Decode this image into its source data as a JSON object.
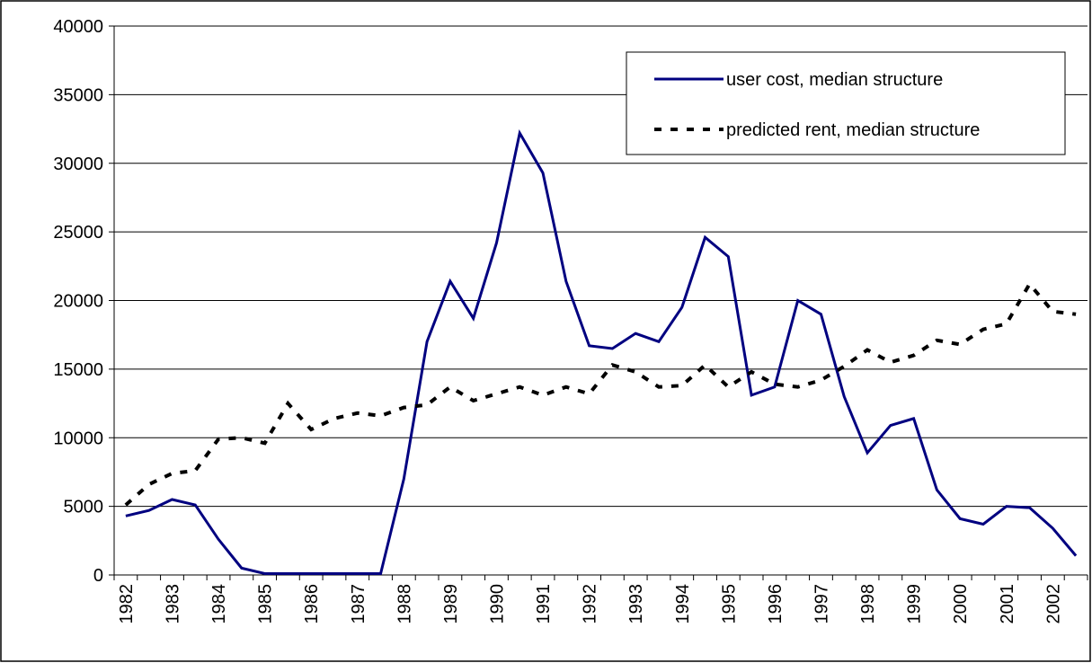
{
  "chart_data": {
    "type": "line",
    "categories": [
      "1982",
      null,
      "1983",
      null,
      "1984",
      null,
      "1985",
      null,
      "1986",
      null,
      "1987",
      null,
      "1988",
      null,
      "1989",
      null,
      "1990",
      null,
      "1991",
      null,
      "1992",
      null,
      "1993",
      null,
      "1994",
      null,
      "1995",
      null,
      "1996",
      null,
      "1997",
      null,
      "1998",
      null,
      "1999",
      null,
      "2000",
      null,
      "2001",
      null,
      "2002",
      null
    ],
    "series": [
      {
        "name": "user cost, median structure",
        "color": "#000080",
        "style": "solid",
        "values": [
          4300,
          4700,
          5500,
          5100,
          2600,
          500,
          100,
          100,
          100,
          100,
          100,
          100,
          7000,
          17000,
          21400,
          18700,
          24200,
          32200,
          29300,
          21400,
          16700,
          16500,
          17600,
          17000,
          19500,
          24600,
          23200,
          13100,
          13700,
          20000,
          19000,
          13000,
          8900,
          10900,
          11400,
          6200,
          4100,
          3700,
          5000,
          4900,
          3400,
          1400
        ]
      },
      {
        "name": "predicted rent, median structure",
        "color": "#000000",
        "style": "dashed",
        "values": [
          5100,
          6600,
          7400,
          7600,
          9900,
          10000,
          9600,
          12500,
          10600,
          11400,
          11800,
          11600,
          12200,
          12400,
          13700,
          12700,
          13200,
          13700,
          13100,
          13700,
          13200,
          15300,
          14800,
          13700,
          13800,
          15300,
          13700,
          14800,
          13900,
          13700,
          14200,
          15200,
          16400,
          15500,
          16000,
          17100,
          16800,
          17900,
          18300,
          21200,
          19200,
          19000
        ]
      }
    ],
    "ylim": [
      0,
      40000
    ],
    "yticks": [
      0,
      5000,
      10000,
      15000,
      20000,
      25000,
      30000,
      35000,
      40000
    ],
    "grid": true
  }
}
